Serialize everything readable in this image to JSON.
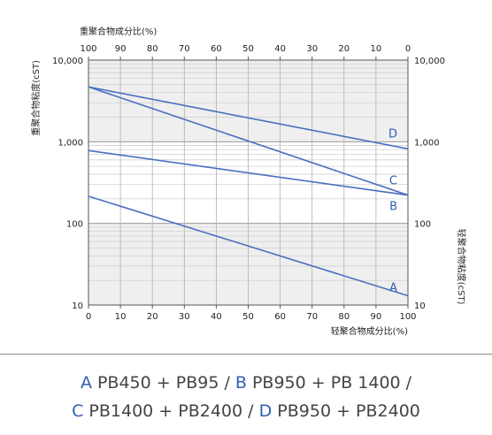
{
  "chart_data": {
    "type": "line",
    "x_bottom_label": "轻聚合物成分比(%)",
    "x_top_label": "重聚合物成分比(%)",
    "y_left_label": "重聚合物粘度(cST)",
    "y_right_label": "轻聚合物粘度(cST)",
    "x_bottom_ticks": [
      "0",
      "10",
      "20",
      "30",
      "40",
      "50",
      "60",
      "70",
      "80",
      "90",
      "100"
    ],
    "x_top_ticks": [
      "100",
      "90",
      "80",
      "70",
      "60",
      "50",
      "40",
      "30",
      "20",
      "10",
      "0"
    ],
    "y_left_ticks": [
      "10,000",
      "1,000",
      "100",
      "10"
    ],
    "y_right_ticks": [
      "10,000",
      "1,000",
      "100",
      "10"
    ],
    "xlim": [
      0,
      100
    ],
    "ylim": [
      10,
      10000
    ],
    "y_scale": "log",
    "grid": true,
    "line_color": "#4a6fc0",
    "label_color": "#2f5fb3",
    "series": [
      {
        "name": "A",
        "x": [
          0,
          100
        ],
        "y": [
          215,
          13
        ]
      },
      {
        "name": "B",
        "x": [
          0,
          100
        ],
        "y": [
          780,
          222
        ]
      },
      {
        "name": "C",
        "x": [
          0,
          100
        ],
        "y": [
          4700,
          222
        ]
      },
      {
        "name": "D",
        "x": [
          0,
          100
        ],
        "y": [
          4700,
          820
        ]
      }
    ]
  },
  "caption": {
    "line1": [
      {
        "label": "A",
        "text": " PB450 + PB95 / "
      },
      {
        "label": "B",
        "text": " PB950 + PB 1400 /"
      }
    ],
    "line2": [
      {
        "label": "C",
        "text": " PB1400 + PB2400 / "
      },
      {
        "label": "D",
        "text": " PB950 + PB2400"
      }
    ]
  }
}
